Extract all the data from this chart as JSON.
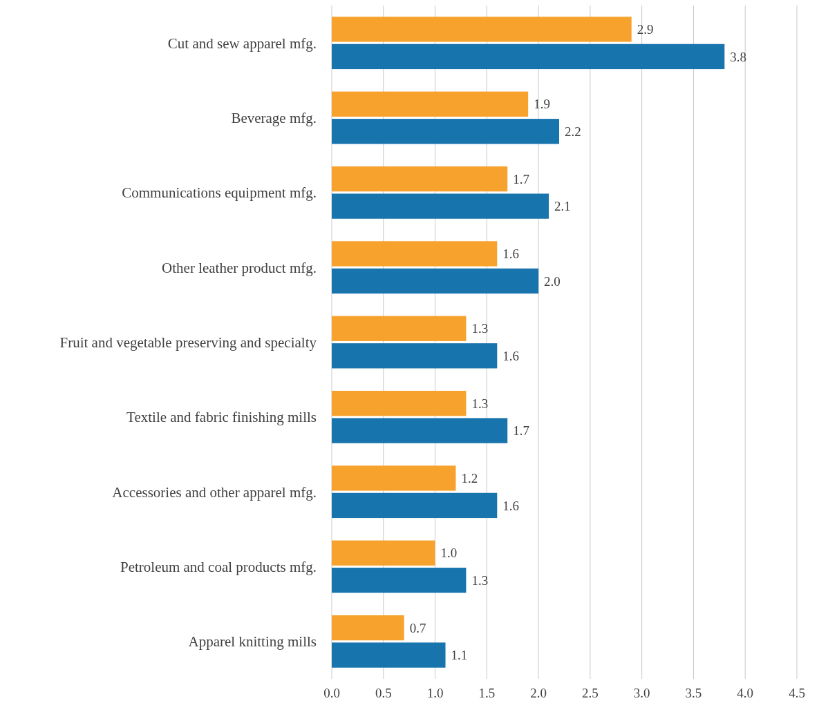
{
  "chart_data": {
    "type": "bar",
    "orientation": "horizontal",
    "categories": [
      "Cut and sew apparel mfg.",
      "Beverage mfg.",
      "Communications equipment mfg.",
      "Other leather product mfg.",
      "Fruit and vegetable preserving and specialty",
      "Textile and fabric finishing mills",
      "Accessories and other apparel mfg.",
      "Petroleum and coal products mfg.",
      "Apparel knitting mills"
    ],
    "series": [
      {
        "color": "#f6a22d",
        "values": [
          2.9,
          1.9,
          1.7,
          1.6,
          1.3,
          1.3,
          1.2,
          1.0,
          0.7
        ],
        "value_labels": [
          "2.9",
          "1.9",
          "1.7",
          "1.6",
          "1.3",
          "1.3",
          "1.2",
          "1.0",
          "0.7"
        ]
      },
      {
        "color": "#1874ad",
        "values": [
          3.8,
          2.2,
          2.1,
          2.0,
          1.6,
          1.7,
          1.6,
          1.3,
          1.1
        ],
        "value_labels": [
          "3.8",
          "2.2",
          "2.1",
          "2.0",
          "1.6",
          "1.7",
          "1.6",
          "1.3",
          "1.1"
        ]
      }
    ],
    "xlim": [
      0,
      4.5
    ],
    "xticks": [
      {
        "value": 0,
        "label": "0.0"
      },
      {
        "value": 0.5,
        "label": "0.5"
      },
      {
        "value": 1,
        "label": "1.0"
      },
      {
        "value": 1.5,
        "label": "1.5"
      },
      {
        "value": 2,
        "label": "2.0"
      },
      {
        "value": 2.5,
        "label": "2.5"
      },
      {
        "value": 3,
        "label": "3.0"
      },
      {
        "value": 3.5,
        "label": "3.5"
      },
      {
        "value": 4,
        "label": "4.0"
      },
      {
        "value": 4.5,
        "label": "4.5"
      }
    ],
    "grid": "x"
  }
}
